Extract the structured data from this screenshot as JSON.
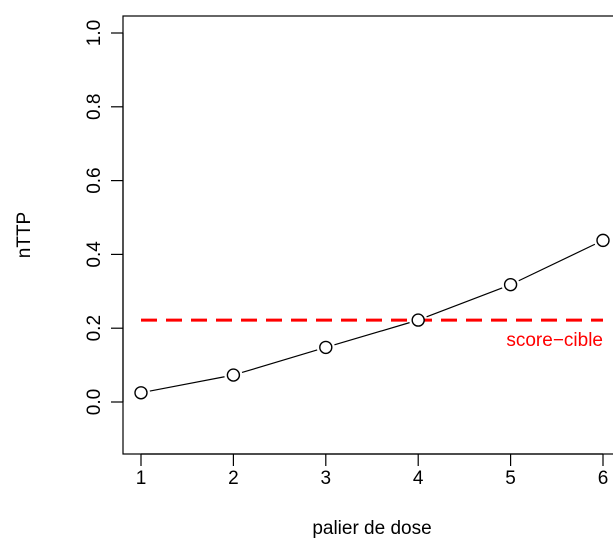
{
  "chart_data": {
    "type": "line",
    "title": "",
    "xlabel": "palier de dose",
    "ylabel": "nTTP",
    "x": [
      1,
      2,
      3,
      4,
      5,
      6
    ],
    "series": [
      {
        "values": [
          0.025,
          0.073,
          0.148,
          0.222,
          0.318,
          0.438
        ],
        "color": "#000000",
        "marker": "open-circle"
      }
    ],
    "reference_line": {
      "y": 0.222,
      "label": "score−cible",
      "color": "#ff0000",
      "style": "dashed"
    },
    "xticks": [
      "1",
      "2",
      "3",
      "4",
      "5",
      "6"
    ],
    "yticks": [
      "0.0",
      "0.2",
      "0.4",
      "0.6",
      "0.8",
      "1.0"
    ],
    "xlim": [
      1,
      6
    ],
    "ylim": [
      0,
      1
    ],
    "grid": false
  }
}
